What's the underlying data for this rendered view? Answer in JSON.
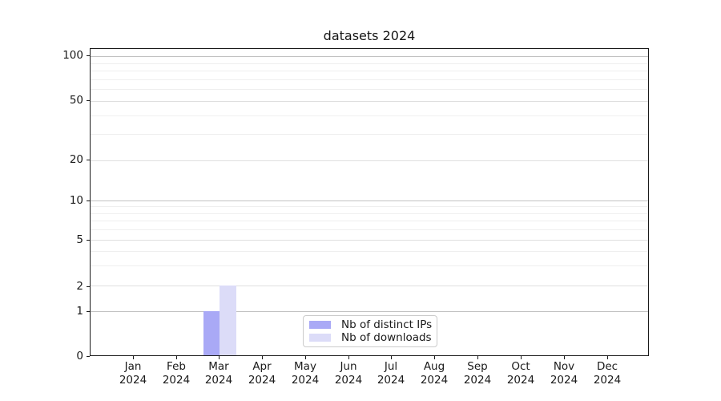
{
  "chart_data": {
    "type": "bar",
    "title": "datasets 2024",
    "categories": [
      "Jan",
      "Feb",
      "Mar",
      "Apr",
      "May",
      "Jun",
      "Jul",
      "Aug",
      "Sep",
      "Oct",
      "Nov",
      "Dec"
    ],
    "category_year_line": "2024",
    "series": [
      {
        "name": "Nb of distinct IPs",
        "color": "#a9a9f6",
        "values": [
          0,
          0,
          1,
          0,
          0,
          0,
          0,
          0,
          0,
          0,
          0,
          0
        ]
      },
      {
        "name": "Nb of downloads",
        "color": "#dcdcf8",
        "values": [
          0,
          0,
          2,
          0,
          0,
          0,
          0,
          0,
          0,
          0,
          0,
          0
        ]
      }
    ],
    "xlabel": "",
    "ylabel": "",
    "y_axis": {
      "scale": "symlog",
      "ticks": [
        0,
        1,
        2,
        5,
        10,
        20,
        50,
        100
      ],
      "minor_ticks": [
        3,
        4,
        6,
        7,
        8,
        9,
        30,
        40,
        60,
        70,
        80,
        90
      ],
      "ylim": [
        0,
        112
      ]
    },
    "grid": "on",
    "legend_position": "lower center",
    "colors": {
      "major_grid": "#c2c2c2",
      "mid_grid": "#dfdfdf",
      "minor_grid": "#efefef",
      "axis_line": "#1a1a1a",
      "text": "#1a1a1a",
      "legend_border": "#cbcbcb",
      "background": "#ffffff"
    }
  }
}
